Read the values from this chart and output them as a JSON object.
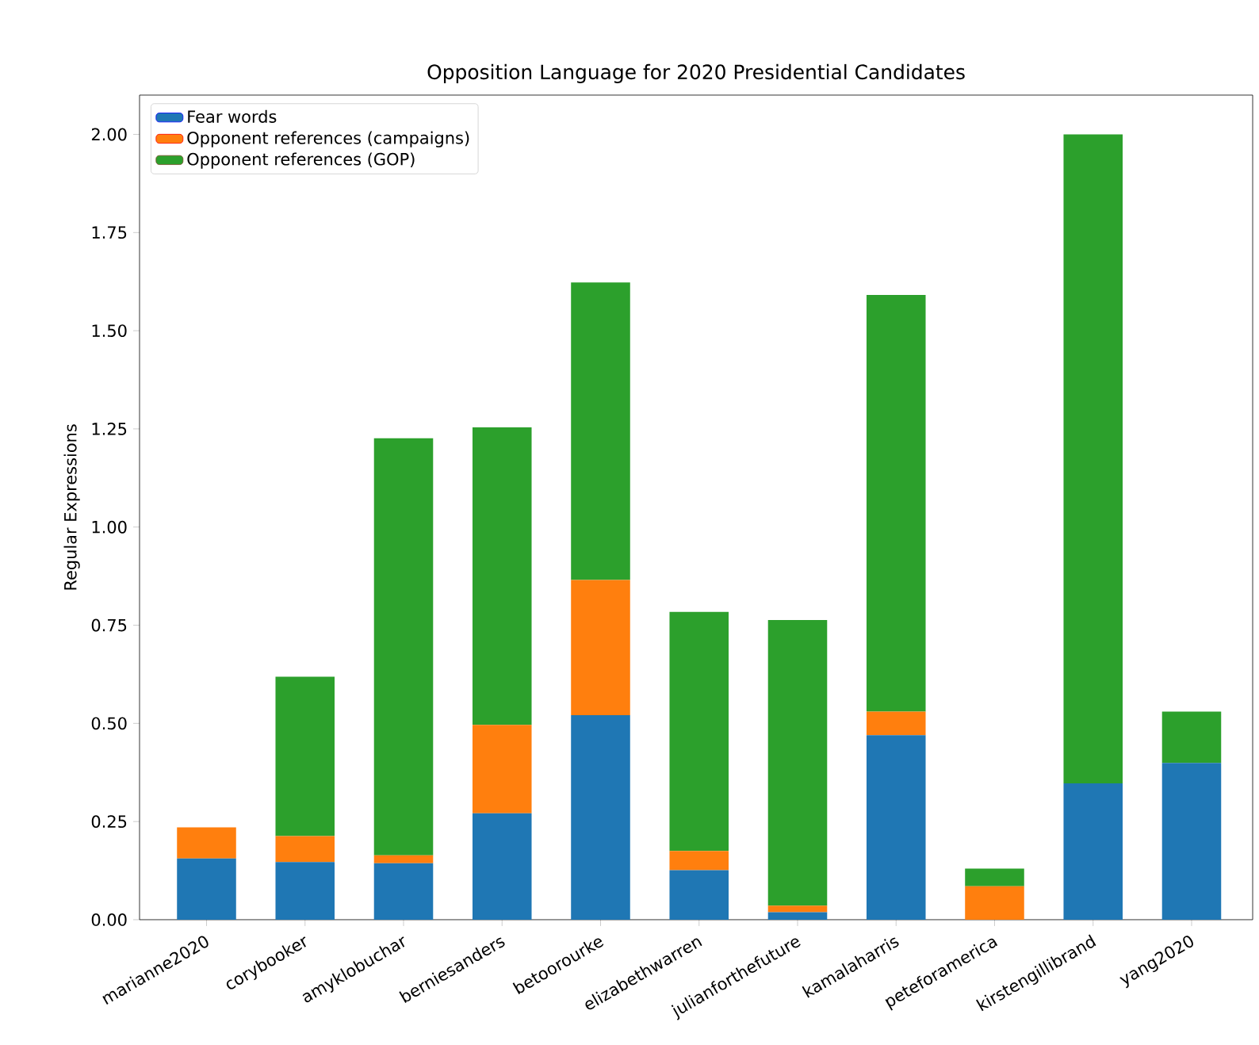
{
  "chart_data": {
    "type": "bar",
    "stacked": true,
    "title": "Opposition Language for 2020 Presidential Candidates",
    "ylabel": "Regular Expressions",
    "categories": [
      "marianne2020",
      "corybooker",
      "amyklobuchar",
      "berniesanders",
      "betoorourke",
      "elizabethwarren",
      "julianforthefuture",
      "kamalaharris",
      "peteforamerica",
      "kirstengillibrand",
      "yang2020"
    ],
    "series": [
      {
        "name": "Fear words",
        "color": "#1f77b4",
        "values": [
          0.156,
          0.147,
          0.144,
          0.271,
          0.521,
          0.126,
          0.019,
          0.47,
          0,
          0.347,
          0.399
        ]
      },
      {
        "name": "Opponent references (campaigns)",
        "color": "#ff7f0e",
        "values": [
          0.079,
          0.066,
          0.02,
          0.225,
          0.344,
          0.049,
          0.017,
          0.06,
          0.085,
          0,
          0
        ]
      },
      {
        "name": "Opponent references (GOP)",
        "color": "#2ca02c",
        "values": [
          0,
          0.406,
          1.062,
          0.758,
          0.758,
          0.609,
          0.727,
          1.061,
          0.045,
          1.653,
          0.131
        ]
      }
    ],
    "ylim": [
      0,
      2.1
    ],
    "yticks": [
      {
        "value": 0,
        "label": "0.00"
      },
      {
        "value": 0.25,
        "label": "0.25"
      },
      {
        "value": 0.5,
        "label": "0.50"
      },
      {
        "value": 0.75,
        "label": "0.75"
      },
      {
        "value": 1,
        "label": "1.00"
      },
      {
        "value": 1.25,
        "label": "1.25"
      },
      {
        "value": 1.5,
        "label": "1.50"
      },
      {
        "value": 1.75,
        "label": "1.75"
      },
      {
        "value": 2,
        "label": "2.00"
      }
    ],
    "legend": "top left",
    "grid": false
  }
}
